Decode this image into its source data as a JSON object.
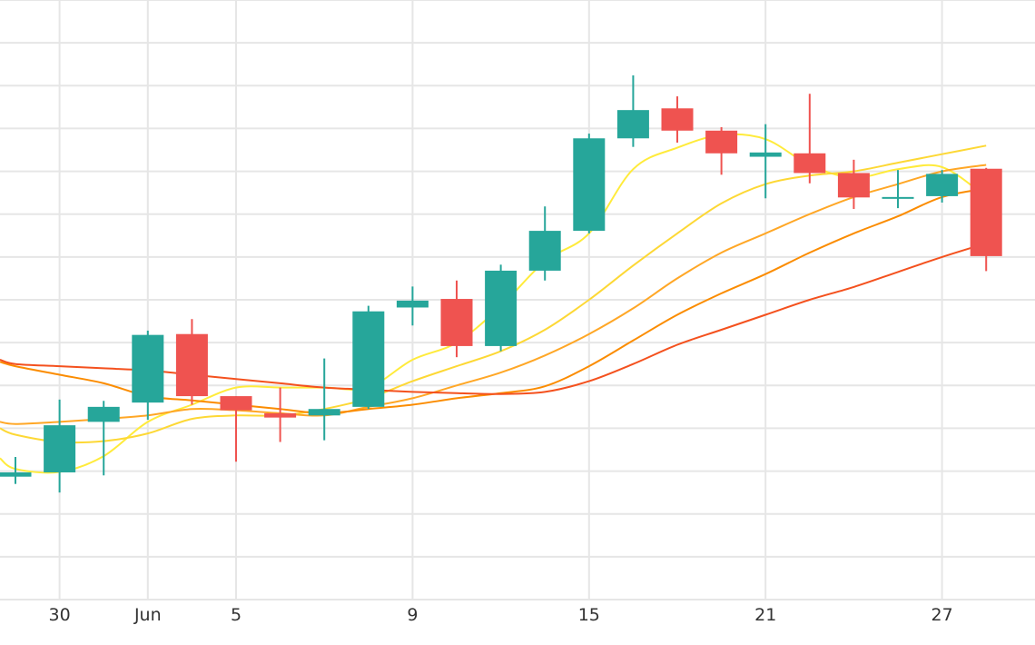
{
  "chart_data": {
    "type": "candlestick",
    "title": "",
    "xlabel": "",
    "ylabel": "",
    "x_ticks": [
      {
        "x": 0,
        "label": "30"
      },
      {
        "x": 2,
        "label": "Jun"
      },
      {
        "x": 4,
        "label": "5"
      },
      {
        "x": 8,
        "label": "9"
      },
      {
        "x": 12,
        "label": "15"
      },
      {
        "x": 16,
        "label": "21"
      },
      {
        "x": 20,
        "label": "27"
      }
    ],
    "xlim": [
      -1.35,
      21.1
    ],
    "ylim": [
      0,
      14
    ],
    "grid": true,
    "up_color": "#26a69a",
    "down_color": "#ef5350",
    "candles": [
      {
        "x": -1,
        "open": 2.87,
        "high": 3.33,
        "low": 2.7,
        "close": 2.97
      },
      {
        "x": 0,
        "open": 2.97,
        "high": 4.67,
        "low": 2.5,
        "close": 4.07
      },
      {
        "x": 1,
        "open": 4.15,
        "high": 4.64,
        "low": 2.9,
        "close": 4.5
      },
      {
        "x": 2,
        "open": 4.6,
        "high": 6.28,
        "low": 4.2,
        "close": 6.18
      },
      {
        "x": 3,
        "open": 6.2,
        "high": 6.55,
        "low": 4.55,
        "close": 4.75
      },
      {
        "x": 4,
        "open": 4.75,
        "high": 4.75,
        "low": 3.22,
        "close": 4.42
      },
      {
        "x": 5,
        "open": 4.35,
        "high": 4.95,
        "low": 3.68,
        "close": 4.25
      },
      {
        "x": 6,
        "open": 4.3,
        "high": 5.63,
        "low": 3.72,
        "close": 4.45
      },
      {
        "x": 7,
        "open": 4.5,
        "high": 6.86,
        "low": 4.45,
        "close": 6.73
      },
      {
        "x": 8,
        "open": 6.82,
        "high": 7.31,
        "low": 6.4,
        "close": 6.98
      },
      {
        "x": 9,
        "open": 7.02,
        "high": 7.45,
        "low": 5.66,
        "close": 5.92
      },
      {
        "x": 10,
        "open": 5.92,
        "high": 7.82,
        "low": 5.8,
        "close": 7.68
      },
      {
        "x": 11,
        "open": 7.68,
        "high": 9.18,
        "low": 7.45,
        "close": 8.61
      },
      {
        "x": 12,
        "open": 8.61,
        "high": 10.88,
        "low": 8.55,
        "close": 10.77
      },
      {
        "x": 13,
        "open": 10.77,
        "high": 12.24,
        "low": 10.57,
        "close": 11.43
      },
      {
        "x": 14,
        "open": 11.47,
        "high": 11.75,
        "low": 10.67,
        "close": 10.95
      },
      {
        "x": 15,
        "open": 10.95,
        "high": 11.03,
        "low": 9.92,
        "close": 10.42
      },
      {
        "x": 16,
        "open": 10.34,
        "high": 11.1,
        "low": 9.37,
        "close": 10.44
      },
      {
        "x": 17,
        "open": 10.42,
        "high": 11.81,
        "low": 9.72,
        "close": 9.96
      },
      {
        "x": 18,
        "open": 9.96,
        "high": 10.27,
        "low": 9.12,
        "close": 9.39
      },
      {
        "x": 19,
        "open": 9.4,
        "high": 10.03,
        "low": 9.14,
        "close": 9.4
      },
      {
        "x": 20,
        "open": 9.42,
        "high": 10.03,
        "low": 9.27,
        "close": 9.94
      },
      {
        "x": 21,
        "open": 10.06,
        "high": 10.08,
        "low": 7.67,
        "close": 8.02
      }
    ],
    "moving_averages": [
      {
        "color": "#ffeb3b",
        "values": [
          [
            -1.35,
            3.3
          ],
          [
            -1,
            3.05
          ],
          [
            0,
            2.98
          ],
          [
            1,
            3.35
          ],
          [
            2,
            4.15
          ],
          [
            3,
            4.55
          ],
          [
            4,
            4.95
          ],
          [
            5,
            4.95
          ],
          [
            6,
            4.95
          ],
          [
            7,
            4.95
          ],
          [
            8,
            5.6
          ],
          [
            9,
            6.0
          ],
          [
            10,
            6.85
          ],
          [
            11,
            7.9
          ],
          [
            12,
            8.55
          ],
          [
            13,
            10.05
          ],
          [
            14,
            10.55
          ],
          [
            15,
            10.85
          ],
          [
            16,
            10.75
          ],
          [
            17,
            10.15
          ],
          [
            18,
            9.85
          ],
          [
            19,
            10.05
          ],
          [
            20,
            10.1
          ],
          [
            21,
            9.4
          ]
        ]
      },
      {
        "color": "#fdd835",
        "values": [
          [
            -1.35,
            4.0
          ],
          [
            -1,
            3.85
          ],
          [
            0,
            3.68
          ],
          [
            1,
            3.7
          ],
          [
            2,
            3.88
          ],
          [
            3,
            4.22
          ],
          [
            4,
            4.3
          ],
          [
            5,
            4.3
          ],
          [
            6,
            4.45
          ],
          [
            7,
            4.7
          ],
          [
            8,
            5.1
          ],
          [
            9,
            5.45
          ],
          [
            10,
            5.8
          ],
          [
            11,
            6.3
          ],
          [
            12,
            7.0
          ],
          [
            13,
            7.8
          ],
          [
            14,
            8.55
          ],
          [
            15,
            9.25
          ],
          [
            16,
            9.7
          ],
          [
            17,
            9.9
          ],
          [
            18,
            10.0
          ],
          [
            19,
            10.2
          ],
          [
            20,
            10.4
          ],
          [
            21,
            10.6
          ]
        ]
      },
      {
        "color": "#ffa726",
        "values": [
          [
            -1.35,
            4.15
          ],
          [
            -1,
            4.1
          ],
          [
            0,
            4.15
          ],
          [
            1,
            4.22
          ],
          [
            2,
            4.3
          ],
          [
            3,
            4.45
          ],
          [
            4,
            4.42
          ],
          [
            5,
            4.35
          ],
          [
            6,
            4.3
          ],
          [
            7,
            4.5
          ],
          [
            8,
            4.7
          ],
          [
            9,
            5.0
          ],
          [
            10,
            5.3
          ],
          [
            11,
            5.7
          ],
          [
            12,
            6.2
          ],
          [
            13,
            6.8
          ],
          [
            14,
            7.5
          ],
          [
            15,
            8.1
          ],
          [
            16,
            8.55
          ],
          [
            17,
            9.0
          ],
          [
            18,
            9.4
          ],
          [
            19,
            9.7
          ],
          [
            20,
            10.0
          ],
          [
            21,
            10.15
          ]
        ]
      },
      {
        "color": "#fb8c00",
        "values": [
          [
            -1.35,
            5.55
          ],
          [
            -1,
            5.45
          ],
          [
            0,
            5.25
          ],
          [
            1,
            5.05
          ],
          [
            2,
            4.75
          ],
          [
            3,
            4.65
          ],
          [
            4,
            4.55
          ],
          [
            5,
            4.45
          ],
          [
            6,
            4.35
          ],
          [
            7,
            4.45
          ],
          [
            8,
            4.55
          ],
          [
            9,
            4.7
          ],
          [
            10,
            4.82
          ],
          [
            11,
            4.98
          ],
          [
            12,
            5.45
          ],
          [
            13,
            6.05
          ],
          [
            14,
            6.65
          ],
          [
            15,
            7.15
          ],
          [
            16,
            7.6
          ],
          [
            17,
            8.1
          ],
          [
            18,
            8.55
          ],
          [
            19,
            8.95
          ],
          [
            20,
            9.4
          ],
          [
            21,
            9.6
          ]
        ]
      },
      {
        "color": "#f4511e",
        "values": [
          [
            -1.35,
            5.6
          ],
          [
            -1,
            5.5
          ],
          [
            0,
            5.45
          ],
          [
            1,
            5.4
          ],
          [
            2,
            5.35
          ],
          [
            3,
            5.25
          ],
          [
            4,
            5.15
          ],
          [
            5,
            5.05
          ],
          [
            6,
            4.95
          ],
          [
            7,
            4.9
          ],
          [
            8,
            4.85
          ],
          [
            9,
            4.82
          ],
          [
            10,
            4.8
          ],
          [
            11,
            4.85
          ],
          [
            12,
            5.1
          ],
          [
            13,
            5.5
          ],
          [
            14,
            5.95
          ],
          [
            15,
            6.3
          ],
          [
            16,
            6.65
          ],
          [
            17,
            7.0
          ],
          [
            18,
            7.3
          ],
          [
            19,
            7.65
          ],
          [
            20,
            8.0
          ],
          [
            21,
            8.32
          ]
        ]
      }
    ]
  }
}
